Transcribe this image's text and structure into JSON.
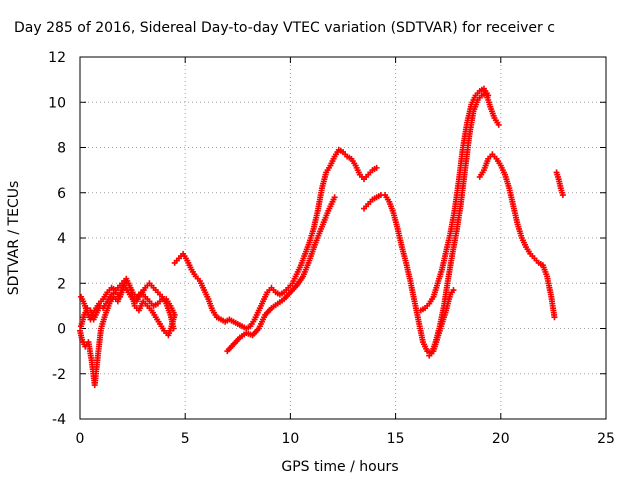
{
  "chart_data": {
    "type": "scatter",
    "title": "Day 285 of 2016, Sidereal Day-to-day VTEC variation (SDTVAR) for receiver c",
    "xlabel": "GPS time / hours",
    "ylabel": "SDTVAR / TECUs",
    "xlim": [
      0,
      25
    ],
    "ylim": [
      -4,
      12
    ],
    "x_ticks": [
      0,
      5,
      10,
      15,
      20,
      25
    ],
    "y_ticks": [
      -4,
      -2,
      0,
      2,
      4,
      6,
      8,
      10,
      12
    ],
    "grid": true,
    "marker": "+",
    "color": "#ff0000",
    "series": [
      {
        "points": [
          [
            0.05,
            0.1
          ],
          [
            0.2,
            0.6
          ],
          [
            0.35,
            0.9
          ],
          [
            0.5,
            0.8
          ],
          [
            0.65,
            0.4
          ],
          [
            0.8,
            0.7
          ],
          [
            0.95,
            1.0
          ],
          [
            1.1,
            0.9
          ],
          [
            1.3,
            1.2
          ],
          [
            1.5,
            1.5
          ],
          [
            1.7,
            1.6
          ],
          [
            1.9,
            1.4
          ],
          [
            2.1,
            1.9
          ],
          [
            2.3,
            1.6
          ],
          [
            2.5,
            1.3
          ],
          [
            2.7,
            1.2
          ],
          [
            2.9,
            1.6
          ],
          [
            3.1,
            1.4
          ],
          [
            3.3,
            1.2
          ],
          [
            3.5,
            1.0
          ],
          [
            3.7,
            1.1
          ],
          [
            3.9,
            1.3
          ],
          [
            4.1,
            1.3
          ],
          [
            4.3,
            1.0
          ],
          [
            4.45,
            0.7
          ]
        ]
      },
      {
        "points": [
          [
            0.05,
            1.4
          ],
          [
            0.2,
            1.1
          ],
          [
            0.35,
            0.7
          ],
          [
            0.5,
            0.4
          ],
          [
            0.7,
            0.8
          ],
          [
            0.9,
            1.1
          ],
          [
            1.1,
            1.3
          ],
          [
            1.3,
            1.6
          ],
          [
            1.5,
            1.8
          ],
          [
            1.7,
            1.7
          ],
          [
            1.9,
            1.9
          ],
          [
            2.1,
            2.1
          ],
          [
            2.3,
            2.0
          ],
          [
            2.5,
            1.6
          ],
          [
            2.7,
            1.4
          ],
          [
            2.9,
            1.5
          ],
          [
            3.1,
            1.8
          ],
          [
            3.3,
            2.0
          ],
          [
            3.5,
            1.8
          ],
          [
            3.7,
            1.6
          ],
          [
            3.9,
            1.4
          ],
          [
            4.1,
            1.1
          ],
          [
            4.3,
            0.6
          ],
          [
            4.45,
            0.0
          ]
        ]
      },
      {
        "points": [
          [
            0.0,
            -0.1
          ],
          [
            0.1,
            -0.5
          ],
          [
            0.25,
            -0.8
          ],
          [
            0.4,
            -0.6
          ],
          [
            0.55,
            -1.4
          ],
          [
            0.7,
            -2.5
          ],
          [
            0.85,
            -1.2
          ],
          [
            1.0,
            0.0
          ],
          [
            1.2,
            0.6
          ],
          [
            1.4,
            1.1
          ],
          [
            1.6,
            1.4
          ],
          [
            1.8,
            1.2
          ],
          [
            2.0,
            1.8
          ],
          [
            2.2,
            2.2
          ],
          [
            2.4,
            1.8
          ],
          [
            2.6,
            1.0
          ],
          [
            2.8,
            0.8
          ],
          [
            3.0,
            1.2
          ],
          [
            3.2,
            1.0
          ],
          [
            3.4,
            0.8
          ],
          [
            3.6,
            0.5
          ],
          [
            3.8,
            0.2
          ],
          [
            4.0,
            -0.1
          ],
          [
            4.2,
            -0.3
          ],
          [
            4.35,
            0.1
          ],
          [
            4.5,
            0.6
          ]
        ]
      },
      {
        "points": [
          [
            4.5,
            2.9
          ],
          [
            4.7,
            3.1
          ],
          [
            4.9,
            3.3
          ],
          [
            5.1,
            3.0
          ],
          [
            5.3,
            2.6
          ],
          [
            5.5,
            2.3
          ],
          [
            5.7,
            2.1
          ],
          [
            5.9,
            1.7
          ],
          [
            6.1,
            1.3
          ],
          [
            6.3,
            0.8
          ],
          [
            6.5,
            0.5
          ],
          [
            6.7,
            0.4
          ],
          [
            6.9,
            0.3
          ],
          [
            7.1,
            0.4
          ],
          [
            7.3,
            0.3
          ],
          [
            7.5,
            0.2
          ],
          [
            7.7,
            0.1
          ],
          [
            7.9,
            0.0
          ],
          [
            8.1,
            0.1
          ],
          [
            8.3,
            0.4
          ],
          [
            8.5,
            0.8
          ],
          [
            8.7,
            1.2
          ],
          [
            8.9,
            1.6
          ],
          [
            9.1,
            1.8
          ],
          [
            9.3,
            1.6
          ],
          [
            9.5,
            1.5
          ],
          [
            9.7,
            1.6
          ],
          [
            9.9,
            1.8
          ],
          [
            10.1,
            2.0
          ],
          [
            10.3,
            2.4
          ],
          [
            10.5,
            2.8
          ],
          [
            10.7,
            3.3
          ],
          [
            10.9,
            3.8
          ],
          [
            11.1,
            4.4
          ],
          [
            11.3,
            5.2
          ],
          [
            11.5,
            6.2
          ],
          [
            11.7,
            6.9
          ],
          [
            11.9,
            7.2
          ],
          [
            12.1,
            7.6
          ],
          [
            12.3,
            7.9
          ],
          [
            12.5,
            7.8
          ],
          [
            12.7,
            7.6
          ],
          [
            12.9,
            7.5
          ],
          [
            13.1,
            7.2
          ],
          [
            13.3,
            6.8
          ],
          [
            13.5,
            6.6
          ],
          [
            13.7,
            6.8
          ],
          [
            13.9,
            7.0
          ],
          [
            14.1,
            7.1
          ]
        ]
      },
      {
        "points": [
          [
            7.0,
            -1.0
          ],
          [
            7.3,
            -0.7
          ],
          [
            7.6,
            -0.4
          ],
          [
            7.9,
            -0.2
          ],
          [
            8.2,
            -0.3
          ],
          [
            8.5,
            0.0
          ],
          [
            8.8,
            0.6
          ],
          [
            9.1,
            0.9
          ],
          [
            9.4,
            1.1
          ],
          [
            9.7,
            1.3
          ],
          [
            10.0,
            1.6
          ],
          [
            10.3,
            1.9
          ],
          [
            10.6,
            2.3
          ],
          [
            10.9,
            3.0
          ],
          [
            11.2,
            3.8
          ],
          [
            11.5,
            4.5
          ],
          [
            11.8,
            5.2
          ],
          [
            12.1,
            5.8
          ]
        ]
      },
      {
        "points": [
          [
            13.5,
            5.3
          ],
          [
            13.7,
            5.5
          ],
          [
            13.9,
            5.7
          ],
          [
            14.1,
            5.8
          ],
          [
            14.3,
            5.9
          ],
          [
            14.5,
            5.9
          ],
          [
            14.7,
            5.6
          ],
          [
            14.9,
            5.1
          ],
          [
            15.1,
            4.4
          ],
          [
            15.3,
            3.6
          ],
          [
            15.5,
            2.9
          ],
          [
            15.7,
            2.1
          ],
          [
            15.9,
            1.2
          ],
          [
            16.1,
            0.3
          ],
          [
            16.3,
            -0.6
          ],
          [
            16.5,
            -1.0
          ],
          [
            16.7,
            -1.1
          ],
          [
            16.9,
            -0.6
          ],
          [
            17.1,
            0.1
          ],
          [
            17.3,
            1.0
          ],
          [
            17.5,
            2.2
          ],
          [
            17.7,
            3.3
          ],
          [
            17.9,
            4.3
          ],
          [
            18.1,
            5.5
          ],
          [
            18.3,
            7.0
          ],
          [
            18.5,
            8.5
          ],
          [
            18.7,
            9.6
          ],
          [
            18.9,
            10.1
          ],
          [
            19.1,
            10.3
          ],
          [
            19.3,
            10.4
          ],
          [
            19.5,
            9.8
          ],
          [
            19.7,
            9.3
          ],
          [
            19.9,
            9.0
          ]
        ]
      },
      {
        "points": [
          [
            16.2,
            0.8
          ],
          [
            16.4,
            0.9
          ],
          [
            16.6,
            1.1
          ],
          [
            16.8,
            1.4
          ],
          [
            17.0,
            2.0
          ],
          [
            17.2,
            2.6
          ],
          [
            17.4,
            3.4
          ],
          [
            17.6,
            4.2
          ],
          [
            17.8,
            5.2
          ],
          [
            18.0,
            6.5
          ],
          [
            18.2,
            8.0
          ],
          [
            18.4,
            9.1
          ],
          [
            18.6,
            9.9
          ],
          [
            18.8,
            10.3
          ],
          [
            19.0,
            10.5
          ],
          [
            19.2,
            10.6
          ],
          [
            19.4,
            10.3
          ]
        ]
      },
      {
        "points": [
          [
            16.6,
            -1.2
          ],
          [
            16.8,
            -1.0
          ],
          [
            17.0,
            -0.4
          ],
          [
            17.2,
            0.2
          ],
          [
            17.4,
            0.8
          ],
          [
            17.6,
            1.5
          ],
          [
            17.75,
            1.7
          ]
        ]
      },
      {
        "points": [
          [
            19.0,
            6.7
          ],
          [
            19.2,
            7.0
          ],
          [
            19.4,
            7.5
          ],
          [
            19.6,
            7.7
          ],
          [
            19.8,
            7.5
          ],
          [
            20.0,
            7.2
          ],
          [
            20.2,
            6.8
          ],
          [
            20.4,
            6.2
          ],
          [
            20.6,
            5.4
          ],
          [
            20.8,
            4.6
          ],
          [
            21.0,
            4.0
          ],
          [
            21.2,
            3.6
          ],
          [
            21.4,
            3.3
          ],
          [
            21.6,
            3.1
          ],
          [
            21.8,
            2.9
          ],
          [
            22.0,
            2.8
          ],
          [
            22.2,
            2.3
          ],
          [
            22.4,
            1.4
          ],
          [
            22.55,
            0.5
          ]
        ]
      },
      {
        "points": [
          [
            22.65,
            6.9
          ],
          [
            22.75,
            6.6
          ],
          [
            22.85,
            6.2
          ],
          [
            22.95,
            5.9
          ]
        ]
      }
    ]
  }
}
